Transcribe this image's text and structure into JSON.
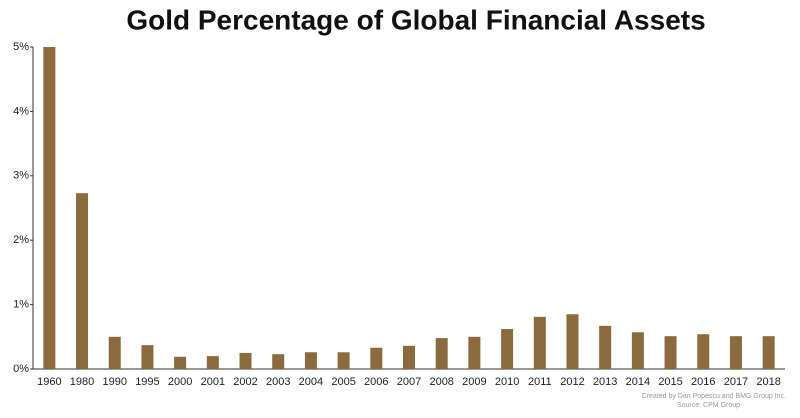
{
  "chart_data": {
    "type": "bar",
    "title": "Gold Percentage of Global Financial Assets",
    "categories": [
      "1960",
      "1980",
      "1990",
      "1995",
      "2000",
      "2001",
      "2002",
      "2003",
      "2004",
      "2005",
      "2006",
      "2007",
      "2008",
      "2009",
      "2010",
      "2011",
      "2012",
      "2013",
      "2014",
      "2015",
      "2016",
      "2017",
      "2018"
    ],
    "values": [
      5.0,
      2.73,
      0.5,
      0.37,
      0.19,
      0.2,
      0.25,
      0.23,
      0.26,
      0.26,
      0.33,
      0.36,
      0.48,
      0.5,
      0.62,
      0.81,
      0.85,
      0.67,
      0.57,
      0.51,
      0.54,
      0.51,
      0.51
    ],
    "color": "#8b6b3d",
    "ylim": [
      0,
      5
    ],
    "yticks": [
      {
        "value": 0,
        "label": "0%"
      },
      {
        "value": 1,
        "label": "1%"
      },
      {
        "value": 2,
        "label": "2%"
      },
      {
        "value": 3,
        "label": "3%"
      },
      {
        "value": 4,
        "label": "4%"
      },
      {
        "value": 5,
        "label": "5%"
      }
    ],
    "grid": false,
    "credit": "Created by Dan Popescu and BMG Group Inc.",
    "source": "Source: CPM Group"
  }
}
